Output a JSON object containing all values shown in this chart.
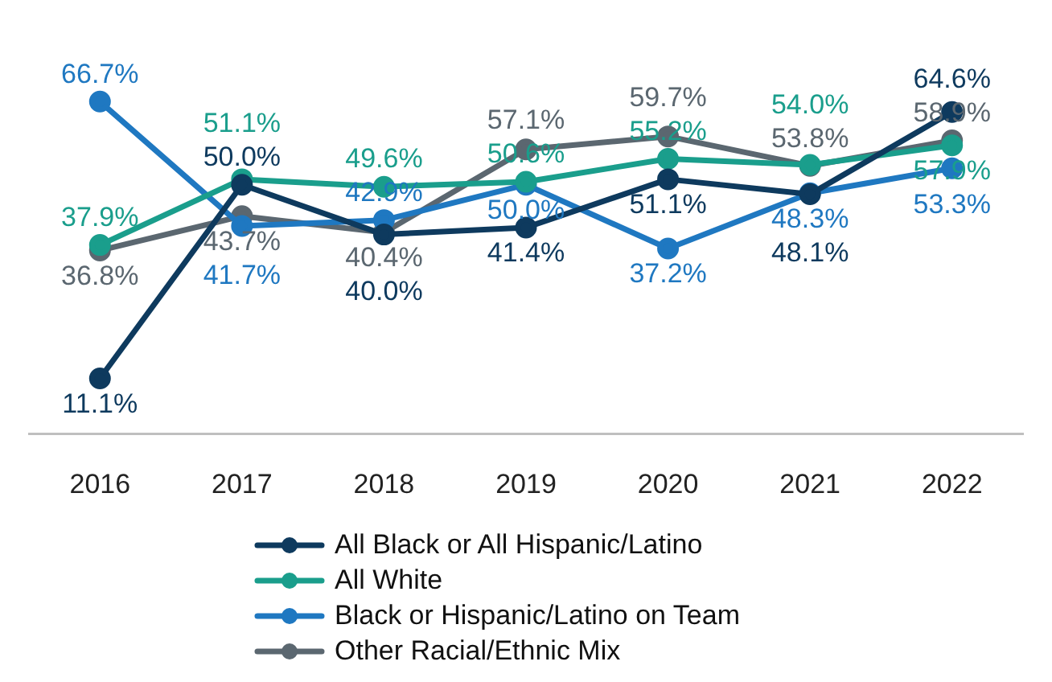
{
  "chart_data": {
    "type": "line",
    "categories": [
      "2016",
      "2017",
      "2018",
      "2019",
      "2020",
      "2021",
      "2022"
    ],
    "series": [
      {
        "name": "All Black or All Hispanic/Latino",
        "color": "#0e3a5e",
        "values": [
          11.1,
          50.0,
          40.0,
          41.4,
          51.1,
          48.1,
          64.6
        ],
        "value_labels": [
          "11.1%",
          "50.0%",
          "40.0%",
          "41.4%",
          "51.1%",
          "48.1%",
          "64.6%"
        ]
      },
      {
        "name": "All White",
        "color": "#1a9e8c",
        "values": [
          37.9,
          51.1,
          49.6,
          50.6,
          55.2,
          54.0,
          57.9
        ],
        "value_labels": [
          "37.9%",
          "51.1%",
          "49.6%",
          "50.6%",
          "55.2%",
          "54.0%",
          "57.9%"
        ]
      },
      {
        "name": "Black or Hispanic/Latino on Team",
        "color": "#1f78c1",
        "values": [
          66.7,
          41.7,
          42.9,
          50.0,
          37.2,
          48.3,
          53.3
        ],
        "value_labels": [
          "66.7%",
          "41.7%",
          "42.9%",
          "50.0%",
          "37.2%",
          "48.3%",
          "53.3%"
        ]
      },
      {
        "name": "Other Racial/Ethnic Mix",
        "color": "#5b6770",
        "values": [
          36.8,
          43.7,
          40.4,
          57.1,
          59.7,
          53.8,
          58.9
        ],
        "value_labels": [
          "36.8%",
          "43.7%",
          "40.4%",
          "57.1%",
          "59.7%",
          "53.8%",
          "58.9%"
        ]
      }
    ],
    "marker": "circle",
    "line_style": "solid",
    "grid": false,
    "legend": "bottom"
  }
}
